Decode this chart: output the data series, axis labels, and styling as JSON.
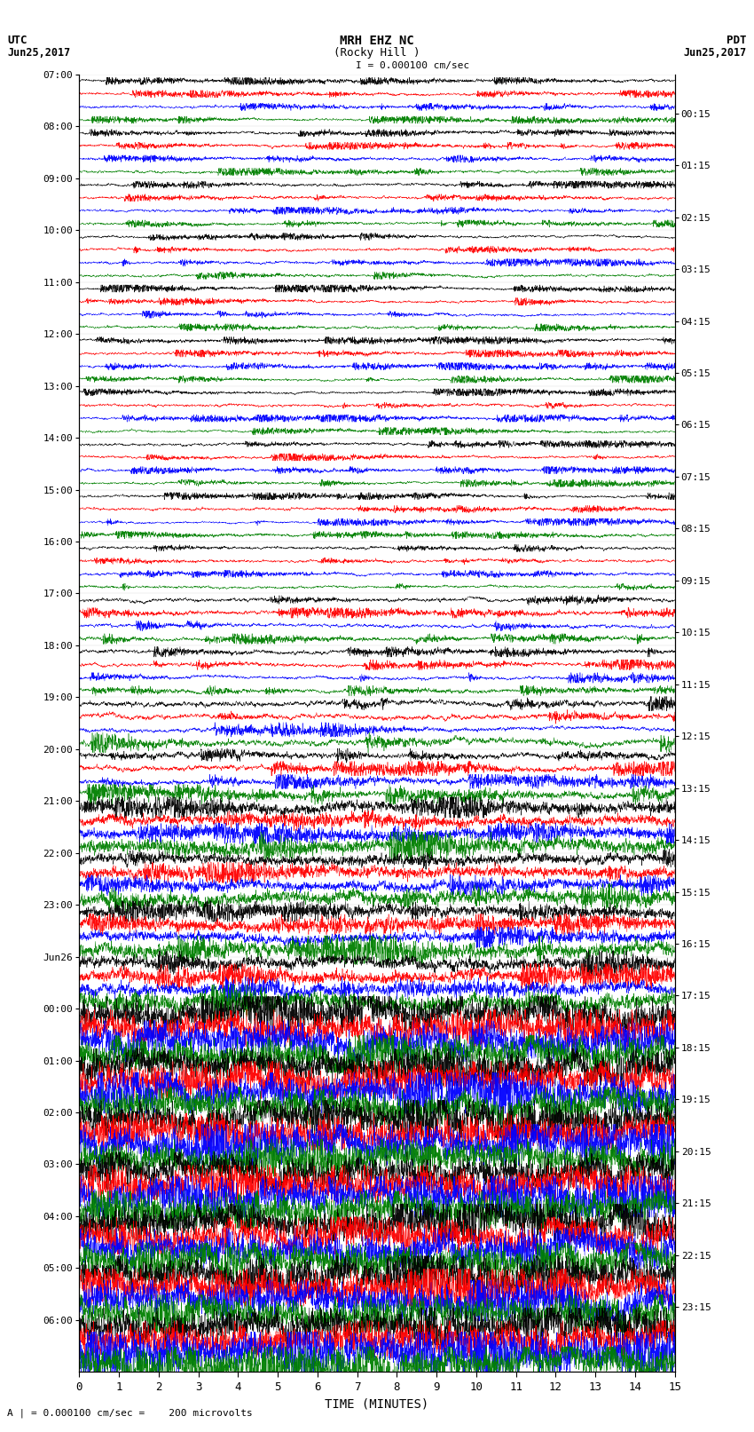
{
  "title_line1": "MRH EHZ NC",
  "title_line2": "(Rocky Hill )",
  "title_line3": "I = 0.000100 cm/sec",
  "label_utc": "UTC",
  "label_utc_date": "Jun25,2017",
  "label_pdt": "PDT",
  "label_pdt_date": "Jun25,2017",
  "xlabel": "TIME (MINUTES)",
  "footer": "A | = 0.000100 cm/sec =    200 microvolts",
  "xlim": [
    0,
    15
  ],
  "xticks": [
    0,
    1,
    2,
    3,
    4,
    5,
    6,
    7,
    8,
    9,
    10,
    11,
    12,
    13,
    14,
    15
  ],
  "left_times": [
    "07:00",
    "08:00",
    "09:00",
    "10:00",
    "11:00",
    "12:00",
    "13:00",
    "14:00",
    "15:00",
    "16:00",
    "17:00",
    "18:00",
    "19:00",
    "20:00",
    "21:00",
    "22:00",
    "23:00",
    "Jun26",
    "00:00",
    "01:00",
    "02:00",
    "03:00",
    "04:00",
    "05:00",
    "06:00"
  ],
  "right_times": [
    "00:15",
    "01:15",
    "02:15",
    "03:15",
    "04:15",
    "05:15",
    "06:15",
    "07:15",
    "08:15",
    "09:15",
    "10:15",
    "11:15",
    "12:15",
    "13:15",
    "14:15",
    "15:15",
    "16:15",
    "17:15",
    "18:15",
    "19:15",
    "20:15",
    "21:15",
    "22:15",
    "23:15"
  ],
  "n_rows": 25,
  "colors": [
    "black",
    "red",
    "blue",
    "green"
  ],
  "bg_color": "white",
  "fig_width": 8.5,
  "fig_height": 16.13,
  "dpi": 100,
  "seed": 42
}
